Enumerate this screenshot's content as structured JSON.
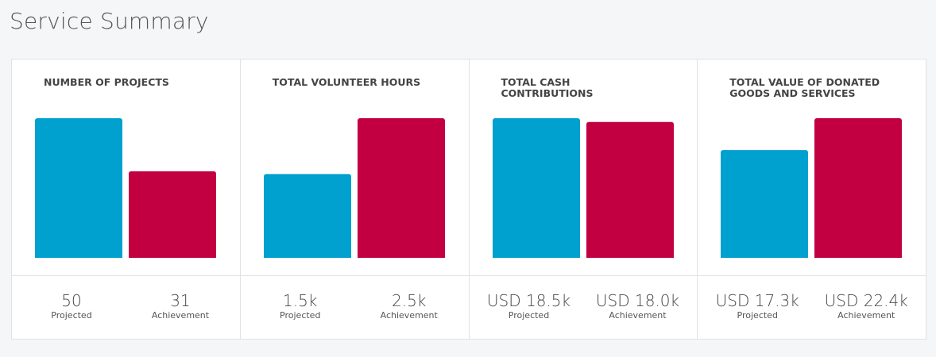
{
  "page": {
    "title": "Service Summary"
  },
  "colors": {
    "projected": "#00a0cf",
    "achievement": "#c20041"
  },
  "labels": {
    "projected": "Projected",
    "achievement": "Achievement"
  },
  "chart_data": [
    {
      "type": "bar",
      "title": "NUMBER OF PROJECTS",
      "categories": [
        "Projected",
        "Achievement"
      ],
      "values": [
        50,
        31
      ],
      "display_values": [
        "50",
        "31"
      ]
    },
    {
      "type": "bar",
      "title": "TOTAL VOLUNTEER HOURS",
      "categories": [
        "Projected",
        "Achievement"
      ],
      "values": [
        1500,
        2500
      ],
      "display_values": [
        "1.5k",
        "2.5k"
      ]
    },
    {
      "type": "bar",
      "title": "TOTAL CASH CONTRIBUTIONS",
      "categories": [
        "Projected",
        "Achievement"
      ],
      "values": [
        18500,
        18000
      ],
      "display_values": [
        "USD 18.5k",
        "USD 18.0k"
      ]
    },
    {
      "type": "bar",
      "title": "TOTAL VALUE OF DONATED GOODS AND SERVICES",
      "categories": [
        "Projected",
        "Achievement"
      ],
      "values": [
        17300,
        22400
      ],
      "display_values": [
        "USD 17.3k",
        "USD 22.4k"
      ]
    }
  ]
}
